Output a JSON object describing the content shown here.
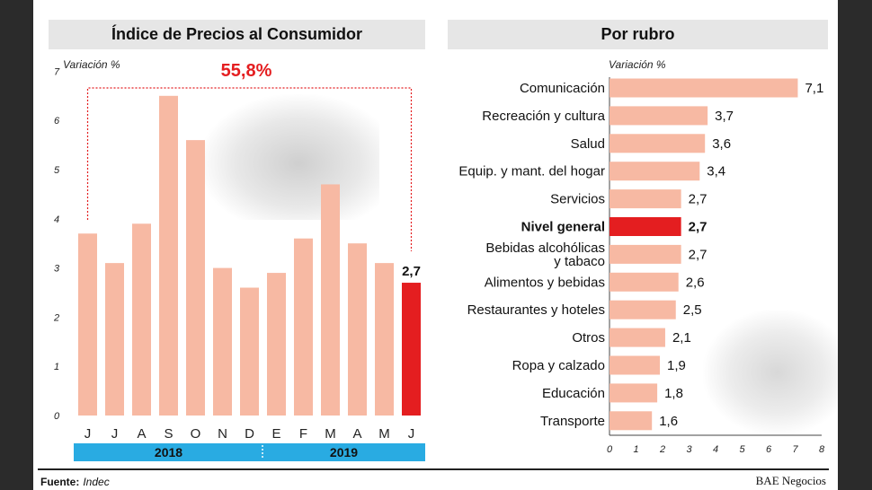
{
  "source": {
    "label": "Fuente:",
    "value": "Indec"
  },
  "brand": "BAE Negocios",
  "colors": {
    "bar": "#f7b9a3",
    "highlight": "#e41e20",
    "year_band": "#29abe2",
    "title_bg": "#e6e6e6"
  },
  "chart_data": [
    {
      "type": "bar",
      "title": "Índice de Precios al Consumidor",
      "ylabel": "Variación %",
      "ylim": [
        0,
        7
      ],
      "yticks": [
        "0",
        "1",
        "2",
        "3",
        "4",
        "5",
        "6",
        "7"
      ],
      "categories": [
        "J",
        "J",
        "A",
        "S",
        "O",
        "N",
        "D",
        "E",
        "F",
        "M",
        "A",
        "M",
        "J"
      ],
      "values": [
        3.7,
        3.1,
        3.9,
        6.5,
        5.6,
        3.0,
        2.6,
        2.9,
        3.6,
        4.7,
        3.5,
        3.1,
        2.7
      ],
      "highlight_index": 12,
      "highlight_label": "2,7",
      "annotation": "55,8%",
      "years": [
        {
          "label": "2018",
          "from": 0,
          "to": 6
        },
        {
          "label": "2019",
          "from": 7,
          "to": 12
        }
      ]
    },
    {
      "type": "bar",
      "orientation": "horizontal",
      "title": "Por rubro",
      "xlabel": "Variación %",
      "xlim": [
        0,
        8
      ],
      "xticks": [
        "0",
        "1",
        "2",
        "3",
        "4",
        "5",
        "6",
        "7",
        "8"
      ],
      "highlight_index": 5,
      "items": [
        {
          "label": "Comunicación",
          "value": 7.1,
          "display": "7,1"
        },
        {
          "label": "Recreación y cultura",
          "value": 3.7,
          "display": "3,7"
        },
        {
          "label": "Salud",
          "value": 3.6,
          "display": "3,6"
        },
        {
          "label": "Equip. y mant. del hogar",
          "value": 3.4,
          "display": "3,4"
        },
        {
          "label": "Servicios",
          "value": 2.7,
          "display": "2,7"
        },
        {
          "label": "Nivel general",
          "value": 2.7,
          "display": "2,7"
        },
        {
          "label": "Bebidas alcohólicas\ny tabaco",
          "value": 2.7,
          "display": "2,7"
        },
        {
          "label": "Alimentos y bebidas",
          "value": 2.6,
          "display": "2,6"
        },
        {
          "label": "Restaurantes y hoteles",
          "value": 2.5,
          "display": "2,5"
        },
        {
          "label": "Otros",
          "value": 2.1,
          "display": "2,1"
        },
        {
          "label": "Ropa y calzado",
          "value": 1.9,
          "display": "1,9"
        },
        {
          "label": "Educación",
          "value": 1.8,
          "display": "1,8"
        },
        {
          "label": "Transporte",
          "value": 1.6,
          "display": "1,6"
        }
      ]
    }
  ]
}
